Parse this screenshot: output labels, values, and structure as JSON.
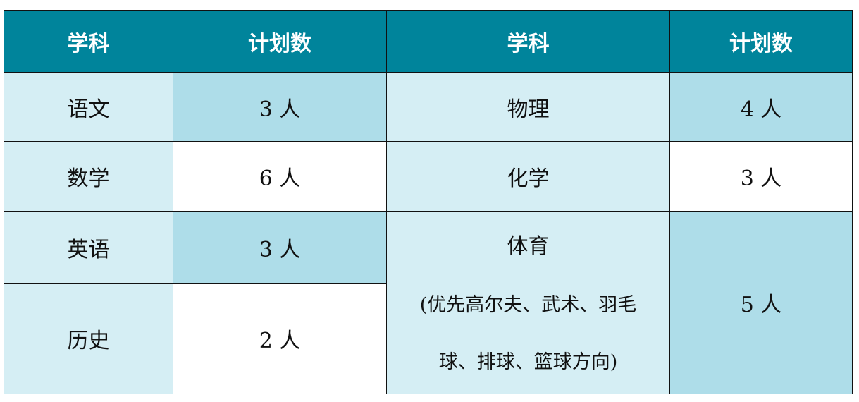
{
  "header": [
    "学科",
    "计划数",
    "学科",
    "计划数"
  ],
  "left_rows": [
    {
      "subject": "语文",
      "count": "3 人"
    },
    {
      "subject": "数学",
      "count": "6 人"
    },
    {
      "subject": "英语",
      "count": "3 人"
    },
    {
      "subject": "历史",
      "count": "2 人"
    }
  ],
  "right_rows": [
    {
      "subject": "物理",
      "count": "4 人"
    },
    {
      "subject": "化学",
      "count": "3 人"
    },
    {
      "subject": "体育",
      "note_line1": "(优先高尔夫、武术、羽毛",
      "note_line2": "球、排球、篮球方向)",
      "count": "5 人"
    }
  ],
  "colors": {
    "header": "#00849b",
    "light": "#d5eef4",
    "mid": "#aedde9"
  }
}
